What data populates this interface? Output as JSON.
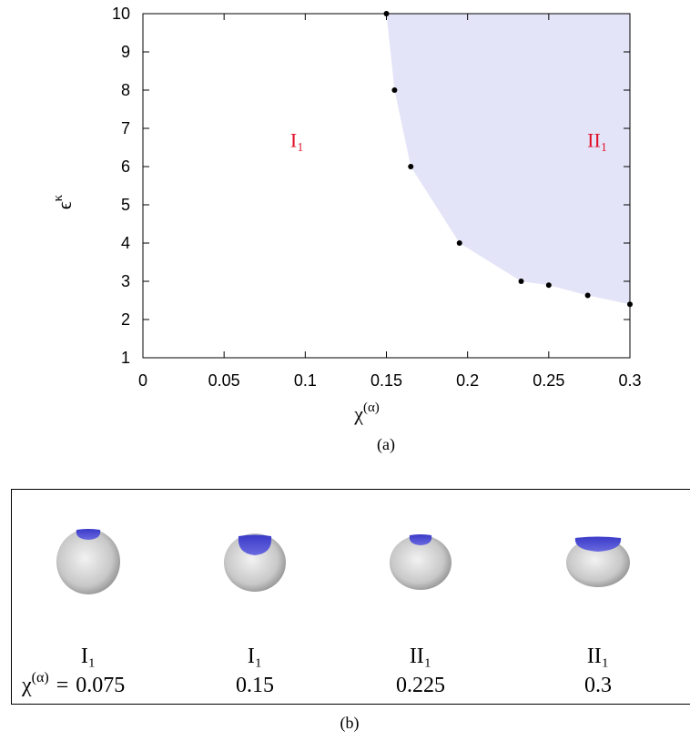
{
  "chart_data": {
    "type": "scatter",
    "x": [
      0.15,
      0.155,
      0.165,
      0.195,
      0.233,
      0.25,
      0.274,
      0.3
    ],
    "values": [
      10,
      8,
      6,
      4,
      3,
      2.9,
      2.63,
      2.4
    ],
    "color": "#000000",
    "fill_color": "#e4e4f8",
    "xlim": [
      0,
      0.3
    ],
    "ylim": [
      1,
      10
    ],
    "xticks": [
      0,
      0.05,
      0.1,
      0.15,
      0.2,
      0.25,
      0.3
    ],
    "yticks": [
      1,
      2,
      3,
      4,
      5,
      6,
      7,
      8,
      9,
      10
    ],
    "x_label": "χ",
    "x_label_sup": "(α)",
    "y_label": "ϵ",
    "y_label_sup": "κ",
    "annotation_color": "#e0102a",
    "annotations": [
      {
        "text": "I₁",
        "x": 0.095,
        "y": 6.7
      },
      {
        "text": "II₁",
        "x": 0.28,
        "y": 6.7
      }
    ],
    "caption": "(a)"
  },
  "panel_b": {
    "caption": "(b)",
    "chi": "χ",
    "chi_sup": "(α)",
    "equals": "=",
    "items": [
      {
        "phase": "I₁",
        "value": "0.075"
      },
      {
        "phase": "I₁",
        "value": "0.15"
      },
      {
        "phase": "II₁",
        "value": "0.225"
      },
      {
        "phase": "II₁",
        "value": "0.3"
      }
    ]
  }
}
